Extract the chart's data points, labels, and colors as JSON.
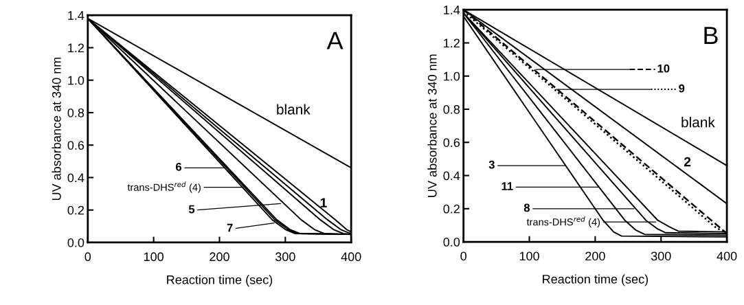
{
  "chart_data": [
    {
      "type": "line",
      "xlabel": "Reaction time (sec)",
      "ylabel": "UV absorbance at 340 nm",
      "xlim": [
        0,
        400
      ],
      "ylim": [
        0,
        1.4
      ],
      "xticks": [
        0,
        100,
        200,
        300,
        400
      ],
      "yticks": [
        {
          "value": 0,
          "label": "0.0"
        },
        {
          "value": 0.2,
          "label": "0.2"
        },
        {
          "value": 0.4,
          "label": "0.4"
        },
        {
          "value": 0.6,
          "label": "0.6"
        },
        {
          "value": 0.8,
          "label": "0.8"
        },
        {
          "value": 1.0,
          "label": "1.0"
        },
        {
          "value": 1.2,
          "label": "1.2"
        },
        {
          "value": 1.4,
          "label": "1.4"
        }
      ],
      "grid": false,
      "legend": false,
      "marker": "none",
      "series": [
        {
          "color": "#000000",
          "line_style": "solid",
          "x": [
            0,
            400
          ],
          "values": [
            1.38,
            0.46
          ]
        },
        {
          "color": "#000000",
          "line_style": "solid",
          "x": [
            0,
            280,
            300,
            315,
            400
          ],
          "values": [
            1.38,
            0.14,
            0.08,
            0.055,
            0.05
          ]
        },
        {
          "color": "#000000",
          "line_style": "solid",
          "x": [
            0,
            284,
            304,
            319,
            400
          ],
          "values": [
            1.38,
            0.14,
            0.08,
            0.055,
            0.05
          ]
        },
        {
          "color": "#000000",
          "line_style": "solid",
          "x": [
            0,
            287,
            307,
            322,
            400
          ],
          "values": [
            1.38,
            0.14,
            0.08,
            0.055,
            0.05
          ]
        },
        {
          "color": "#000000",
          "line_style": "solid",
          "x": [
            0,
            324,
            344,
            359,
            400
          ],
          "values": [
            1.38,
            0.14,
            0.08,
            0.055,
            0.05
          ]
        },
        {
          "color": "#000000",
          "line_style": "solid",
          "x": [
            0,
            353,
            373,
            388,
            400
          ],
          "values": [
            1.38,
            0.14,
            0.08,
            0.055,
            0.05
          ]
        },
        {
          "color": "#000000",
          "line_style": "solid",
          "x": [
            0,
            364,
            384,
            396,
            400
          ],
          "values": [
            1.38,
            0.14,
            0.08,
            0.06,
            0.055
          ]
        },
        {
          "color": "#000000",
          "line_style": "solid",
          "x": [
            0,
            376,
            393,
            400
          ],
          "values": [
            1.38,
            0.14,
            0.08,
            0.065
          ]
        }
      ],
      "annotations": [
        "6",
        "trans-DHS$^{red}$ (4)",
        {
          "text": "5",
          "x": 293,
          "y": 0.24
        },
        {
          "text": "7",
          "x": 283,
          "y": 0.12
        },
        "1",
        "blank",
        "A"
      ]
    },
    {
      "type": "line",
      "xlabel": "Reaction time (sec)",
      "ylabel": "UV absorbance at 340 nm",
      "xlim": [
        0,
        400
      ],
      "ylim": [
        0,
        1.4
      ],
      "xticks": [
        0,
        100,
        200,
        300,
        400
      ],
      "yticks": [
        {
          "value": 0,
          "label": "0.0"
        },
        {
          "value": 0.2,
          "label": "0.2"
        },
        {
          "value": 0.4,
          "label": "0.4"
        },
        {
          "value": 0.6,
          "label": "0.6"
        },
        {
          "value": 0.8,
          "label": "0.8"
        },
        {
          "value": 1.0,
          "label": "1.0"
        },
        {
          "value": 1.2,
          "label": "1.2"
        },
        {
          "value": 1.4,
          "label": "1.4"
        }
      ],
      "grid": false,
      "legend": false,
      "marker": "none",
      "series": [
        {
          "color": "#000000",
          "line_style": "solid",
          "x": [
            0,
            400
          ],
          "values": [
            1.4,
            0.46
          ]
        },
        {
          "color": "#000000",
          "line_style": "solid",
          "x": [
            0,
            400
          ],
          "values": [
            1.4,
            0.23
          ]
        },
        {
          "color": "#000000",
          "line_style": "dashed",
          "x": [
            0,
            400
          ],
          "values": [
            1.4,
            0.05
          ]
        },
        {
          "color": "#000000",
          "line_style": "dotted",
          "x": [
            0,
            385,
            400
          ],
          "values": [
            1.39,
            0.08,
            0.06
          ]
        },
        {
          "color": "#000000",
          "line_style": "solid",
          "x": [
            0,
            212,
            228,
            240,
            400
          ],
          "values": [
            1.36,
            0.13,
            0.06,
            0.035,
            0.03
          ]
        },
        {
          "color": "#000000",
          "line_style": "solid",
          "x": [
            0,
            245,
            262,
            275,
            400
          ],
          "values": [
            1.38,
            0.13,
            0.07,
            0.045,
            0.04
          ]
        },
        {
          "color": "#000000",
          "line_style": "solid",
          "x": [
            0,
            277,
            294,
            307,
            400
          ],
          "values": [
            1.38,
            0.13,
            0.08,
            0.055,
            0.05
          ]
        },
        {
          "color": "#000000",
          "line_style": "solid",
          "x": [
            0,
            295,
            313,
            326,
            400
          ],
          "values": [
            1.38,
            0.13,
            0.09,
            0.065,
            0.06
          ]
        }
      ],
      "annotations": [
        {
          "text": "10",
          "x": 110,
          "y": 1.04
        },
        {
          "text": "9",
          "x": 141,
          "y": 0.92
        },
        "blank",
        "2",
        {
          "text": "3",
          "x": 155,
          "y": 0.46
        },
        {
          "text": "11",
          "x": 206,
          "y": 0.33
        },
        {
          "text": "8",
          "x": 259,
          "y": 0.2
        },
        {
          "text": "trans-DHS$^{red}$ (4)",
          "x": 292,
          "y": 0.12
        },
        "B"
      ]
    }
  ]
}
